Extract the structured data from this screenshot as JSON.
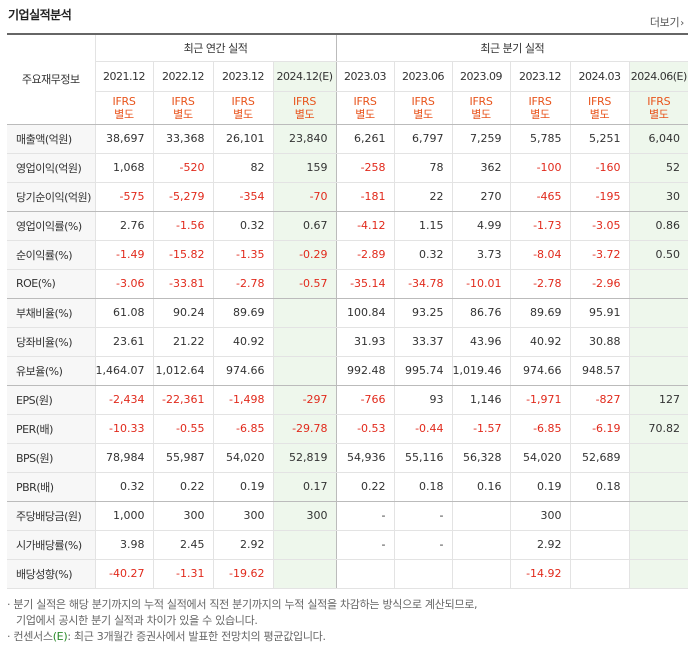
{
  "header": {
    "title": "기업실적분석",
    "more_label": "더보기"
  },
  "table": {
    "corner_label": "주요재무정보",
    "annual_group": "최근 연간 실적",
    "quarter_group": "최근 분기 실적",
    "periods": [
      "2021.12",
      "2022.12",
      "2023.12",
      "2024.12(E)",
      "2023.03",
      "2023.06",
      "2023.09",
      "2023.12",
      "2024.03",
      "2024.06(E)"
    ],
    "ifrs_line1": "IFRS",
    "ifrs_line2": "별도",
    "rows": [
      {
        "label": "매출액(억원)",
        "values": [
          "38,697",
          "33,368",
          "26,101",
          "23,840",
          "6,261",
          "6,797",
          "7,259",
          "5,785",
          "5,251",
          "6,040"
        ]
      },
      {
        "label": "영업이익(억원)",
        "values": [
          "1,068",
          "-520",
          "82",
          "159",
          "-258",
          "78",
          "362",
          "-100",
          "-160",
          "52"
        ]
      },
      {
        "label": "당기순이익(억원)",
        "values": [
          "-575",
          "-5,279",
          "-354",
          "-70",
          "-181",
          "22",
          "270",
          "-465",
          "-195",
          "30"
        ]
      },
      {
        "label": "영업이익률(%)",
        "values": [
          "2.76",
          "-1.56",
          "0.32",
          "0.67",
          "-4.12",
          "1.15",
          "4.99",
          "-1.73",
          "-3.05",
          "0.86"
        ]
      },
      {
        "label": "순이익률(%)",
        "values": [
          "-1.49",
          "-15.82",
          "-1.35",
          "-0.29",
          "-2.89",
          "0.32",
          "3.73",
          "-8.04",
          "-3.72",
          "0.50"
        ]
      },
      {
        "label": "ROE(%)",
        "values": [
          "-3.06",
          "-33.81",
          "-2.78",
          "-0.57",
          "-35.14",
          "-34.78",
          "-10.01",
          "-2.78",
          "-2.96",
          ""
        ]
      },
      {
        "label": "부채비율(%)",
        "values": [
          "61.08",
          "90.24",
          "89.69",
          "",
          "100.84",
          "93.25",
          "86.76",
          "89.69",
          "95.91",
          ""
        ]
      },
      {
        "label": "당좌비율(%)",
        "values": [
          "23.61",
          "21.22",
          "40.92",
          "",
          "31.93",
          "33.37",
          "43.96",
          "40.92",
          "30.88",
          ""
        ]
      },
      {
        "label": "유보율(%)",
        "values": [
          "1,464.07",
          "1,012.64",
          "974.66",
          "",
          "992.48",
          "995.74",
          "1,019.46",
          "974.66",
          "948.57",
          ""
        ]
      },
      {
        "label": "EPS(원)",
        "values": [
          "-2,434",
          "-22,361",
          "-1,498",
          "-297",
          "-766",
          "93",
          "1,146",
          "-1,971",
          "-827",
          "127"
        ]
      },
      {
        "label": "PER(배)",
        "values": [
          "-10.33",
          "-0.55",
          "-6.85",
          "-29.78",
          "-0.53",
          "-0.44",
          "-1.57",
          "-6.85",
          "-6.19",
          "70.82"
        ]
      },
      {
        "label": "BPS(원)",
        "values": [
          "78,984",
          "55,987",
          "54,020",
          "52,819",
          "54,936",
          "55,116",
          "56,328",
          "54,020",
          "52,689",
          ""
        ]
      },
      {
        "label": "PBR(배)",
        "values": [
          "0.32",
          "0.22",
          "0.19",
          "0.17",
          "0.22",
          "0.18",
          "0.16",
          "0.19",
          "0.18",
          ""
        ]
      },
      {
        "label": "주당배당금(원)",
        "values": [
          "1,000",
          "300",
          "300",
          "300",
          "-",
          "-",
          "",
          "300",
          "",
          ""
        ]
      },
      {
        "label": "시가배당률(%)",
        "values": [
          "3.98",
          "2.45",
          "2.92",
          "",
          "-",
          "-",
          "",
          "2.92",
          "",
          ""
        ]
      },
      {
        "label": "배당성향(%)",
        "values": [
          "-40.27",
          "-1.31",
          "-19.62",
          "",
          "",
          "",
          "",
          "-14.92",
          "",
          ""
        ]
      }
    ]
  },
  "notes": {
    "line1": "분기 실적은 해당 분기까지의 누적 실적에서 직전 분기까지의 누적 실적을 차감하는 방식으로 계산되므로,",
    "line2": "기업에서 공시한 분기 실적과 차이가 있을 수 있습니다.",
    "line3_prefix": "컨센서스",
    "line3_e": "(E)",
    "line3_suffix": ": 최근 3개월간 증권사에서 발표한 전망치의 평균값입니다."
  }
}
